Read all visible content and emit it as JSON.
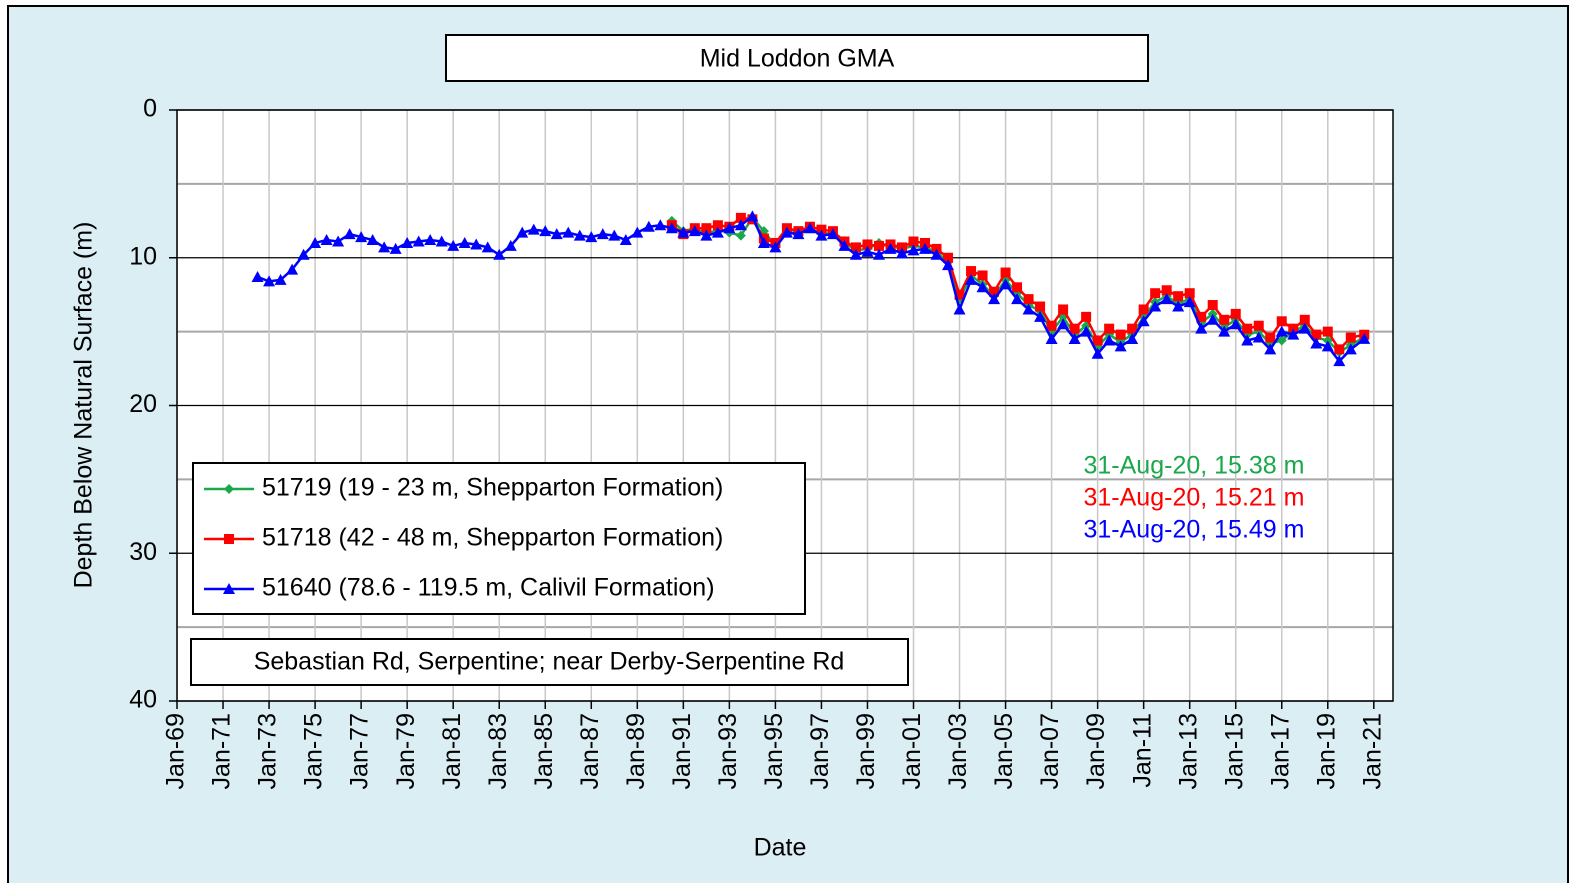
{
  "chart_data": {
    "type": "line",
    "title": "Mid Loddon GMA",
    "xlabel": "Date",
    "ylabel": "Depth Below Natural Surface (m)",
    "location": "Sebastian Rd, Serpentine; near Derby-Serpentine Rd",
    "y_inverted": true,
    "grid": true,
    "legend_loc": "lower left",
    "xlim": [
      "1969-01",
      "2021-11"
    ],
    "xticks": [
      {
        "value": "1969-01",
        "label": "Jan-69"
      },
      {
        "value": "1971-01",
        "label": "Jan-71"
      },
      {
        "value": "1973-01",
        "label": "Jan-73"
      },
      {
        "value": "1975-01",
        "label": "Jan-75"
      },
      {
        "value": "1977-01",
        "label": "Jan-77"
      },
      {
        "value": "1979-01",
        "label": "Jan-79"
      },
      {
        "value": "1981-01",
        "label": "Jan-81"
      },
      {
        "value": "1983-01",
        "label": "Jan-83"
      },
      {
        "value": "1985-01",
        "label": "Jan-85"
      },
      {
        "value": "1987-01",
        "label": "Jan-87"
      },
      {
        "value": "1989-01",
        "label": "Jan-89"
      },
      {
        "value": "1991-01",
        "label": "Jan-91"
      },
      {
        "value": "1993-01",
        "label": "Jan-93"
      },
      {
        "value": "1995-01",
        "label": "Jan-95"
      },
      {
        "value": "1997-01",
        "label": "Jan-97"
      },
      {
        "value": "1999-01",
        "label": "Jan-99"
      },
      {
        "value": "2001-01",
        "label": "Jan-01"
      },
      {
        "value": "2003-01",
        "label": "Jan-03"
      },
      {
        "value": "2005-01",
        "label": "Jan-05"
      },
      {
        "value": "2007-01",
        "label": "Jan-07"
      },
      {
        "value": "2009-01",
        "label": "Jan-09"
      },
      {
        "value": "2011-01",
        "label": "Jan-11"
      },
      {
        "value": "2013-01",
        "label": "Jan-13"
      },
      {
        "value": "2015-01",
        "label": "Jan-15"
      },
      {
        "value": "2017-01",
        "label": "Jan-17"
      },
      {
        "value": "2019-01",
        "label": "Jan-19"
      },
      {
        "value": "2021-01",
        "label": "Jan-21"
      }
    ],
    "ylim": [
      0,
      40
    ],
    "yticks": [
      0,
      10,
      20,
      30,
      40
    ],
    "y_minor_ticks": [
      5,
      15,
      25,
      35
    ],
    "annotations": [
      {
        "text": "31-Aug-20,  15.38 m",
        "color": "#1aa84a"
      },
      {
        "text": "31-Aug-20,  15.21 m",
        "color": "#ff0000"
      },
      {
        "text": "31-Aug-20,  15.49 m",
        "color": "#0000ff"
      }
    ],
    "series": [
      {
        "name": "51719 (19 - 23 m, Shepparton Formation)",
        "color": "#1aa84a",
        "marker": "diamond",
        "x": [
          "1990-07",
          "1991-01",
          "1991-07",
          "1992-01",
          "1992-07",
          "1993-01",
          "1993-07",
          "1994-01",
          "1994-07",
          "1995-01",
          "1995-07",
          "1996-01",
          "1996-07",
          "1997-01",
          "1997-07",
          "1998-01",
          "1998-07",
          "1999-01",
          "1999-07",
          "2000-01",
          "2000-07",
          "2001-01",
          "2001-07",
          "2002-01",
          "2002-07",
          "2003-01",
          "2003-07",
          "2004-01",
          "2004-07",
          "2005-01",
          "2005-07",
          "2006-01",
          "2006-07",
          "2007-01",
          "2007-07",
          "2008-01",
          "2008-07",
          "2009-01",
          "2009-07",
          "2010-01",
          "2010-07",
          "2011-01",
          "2011-07",
          "2012-01",
          "2012-07",
          "2013-01",
          "2013-07",
          "2014-01",
          "2014-07",
          "2015-01",
          "2015-07",
          "2016-01",
          "2016-07",
          "2017-01",
          "2017-07",
          "2018-01",
          "2018-07",
          "2019-01",
          "2019-07",
          "2020-01",
          "2020-08"
        ],
        "values": [
          7.5,
          8.2,
          8.0,
          8.4,
          8.1,
          8.3,
          8.5,
          7.3,
          8.2,
          9.2,
          8.2,
          8.4,
          8.0,
          8.4,
          8.3,
          9.0,
          9.5,
          9.4,
          9.0,
          9.2,
          9.4,
          9.2,
          9.3,
          9.6,
          10.3,
          12.8,
          11.2,
          11.8,
          12.6,
          11.5,
          12.4,
          13.2,
          13.6,
          15.0,
          14.0,
          15.2,
          14.6,
          16.0,
          15.2,
          15.7,
          15.2,
          14.0,
          13.0,
          12.6,
          13.1,
          12.8,
          14.4,
          13.8,
          14.7,
          14.2,
          15.2,
          15.0,
          15.8,
          15.6,
          15.0,
          14.6,
          15.4,
          15.6,
          16.4,
          15.9,
          15.38
        ]
      },
      {
        "name": "51718 (42 - 48 m, Shepparton Formation)",
        "color": "#ff0000",
        "marker": "square",
        "x": [
          "1990-07",
          "1991-01",
          "1991-07",
          "1992-01",
          "1992-07",
          "1993-01",
          "1993-07",
          "1994-01",
          "1994-07",
          "1995-01",
          "1995-07",
          "1996-01",
          "1996-07",
          "1997-01",
          "1997-07",
          "1998-01",
          "1998-07",
          "1999-01",
          "1999-07",
          "2000-01",
          "2000-07",
          "2001-01",
          "2001-07",
          "2002-01",
          "2002-07",
          "2003-01",
          "2003-07",
          "2004-01",
          "2004-07",
          "2005-01",
          "2005-07",
          "2006-01",
          "2006-07",
          "2007-01",
          "2007-07",
          "2008-01",
          "2008-07",
          "2009-01",
          "2009-07",
          "2010-01",
          "2010-07",
          "2011-01",
          "2011-07",
          "2012-01",
          "2012-07",
          "2013-01",
          "2013-07",
          "2014-01",
          "2014-07",
          "2015-01",
          "2015-07",
          "2016-01",
          "2016-07",
          "2017-01",
          "2017-07",
          "2018-01",
          "2018-07",
          "2019-01",
          "2019-07",
          "2020-01",
          "2020-08"
        ],
        "values": [
          7.8,
          8.4,
          8.0,
          8.0,
          7.8,
          7.9,
          7.3,
          7.4,
          8.7,
          9.0,
          8.0,
          8.2,
          7.9,
          8.1,
          8.2,
          8.9,
          9.3,
          9.1,
          9.2,
          9.1,
          9.3,
          8.9,
          9.0,
          9.4,
          10.0,
          12.5,
          10.9,
          11.2,
          12.3,
          11.0,
          12.0,
          12.8,
          13.3,
          14.6,
          13.5,
          14.8,
          14.0,
          15.6,
          14.8,
          15.2,
          14.8,
          13.5,
          12.4,
          12.2,
          12.6,
          12.4,
          14.0,
          13.2,
          14.2,
          13.8,
          14.8,
          14.6,
          15.4,
          14.3,
          14.8,
          14.2,
          15.2,
          15.0,
          16.2,
          15.4,
          15.21
        ]
      },
      {
        "name": "51640 (78.6 - 119.5 m, Calivil Formation)",
        "color": "#0000ff",
        "marker": "triangle",
        "x": [
          "1972-07",
          "1973-01",
          "1973-07",
          "1974-01",
          "1974-07",
          "1975-01",
          "1975-07",
          "1976-01",
          "1976-07",
          "1977-01",
          "1977-07",
          "1978-01",
          "1978-07",
          "1979-01",
          "1979-07",
          "1980-01",
          "1980-07",
          "1981-01",
          "1981-07",
          "1982-01",
          "1982-07",
          "1983-01",
          "1983-07",
          "1984-01",
          "1984-07",
          "1985-01",
          "1985-07",
          "1986-01",
          "1986-07",
          "1987-01",
          "1987-07",
          "1988-01",
          "1988-07",
          "1989-01",
          "1989-07",
          "1990-01",
          "1990-07",
          "1991-01",
          "1991-07",
          "1992-01",
          "1992-07",
          "1993-01",
          "1993-07",
          "1994-01",
          "1994-07",
          "1995-01",
          "1995-07",
          "1996-01",
          "1996-07",
          "1997-01",
          "1997-07",
          "1998-01",
          "1998-07",
          "1999-01",
          "1999-07",
          "2000-01",
          "2000-07",
          "2001-01",
          "2001-07",
          "2002-01",
          "2002-07",
          "2003-01",
          "2003-07",
          "2004-01",
          "2004-07",
          "2005-01",
          "2005-07",
          "2006-01",
          "2006-07",
          "2007-01",
          "2007-07",
          "2008-01",
          "2008-07",
          "2009-01",
          "2009-07",
          "2010-01",
          "2010-07",
          "2011-01",
          "2011-07",
          "2012-01",
          "2012-07",
          "2013-01",
          "2013-07",
          "2014-01",
          "2014-07",
          "2015-01",
          "2015-07",
          "2016-01",
          "2016-07",
          "2017-01",
          "2017-07",
          "2018-01",
          "2018-07",
          "2019-01",
          "2019-07",
          "2020-01",
          "2020-08"
        ],
        "values": [
          11.3,
          11.6,
          11.5,
          10.8,
          9.8,
          9.0,
          8.8,
          8.9,
          8.4,
          8.6,
          8.8,
          9.3,
          9.4,
          9.0,
          8.9,
          8.8,
          8.9,
          9.2,
          9.0,
          9.1,
          9.3,
          9.8,
          9.2,
          8.3,
          8.1,
          8.2,
          8.4,
          8.3,
          8.5,
          8.6,
          8.4,
          8.5,
          8.8,
          8.3,
          7.9,
          7.8,
          8.0,
          8.3,
          8.2,
          8.5,
          8.3,
          8.0,
          7.8,
          7.2,
          9.0,
          9.3,
          8.3,
          8.4,
          8.0,
          8.5,
          8.4,
          9.2,
          9.8,
          9.6,
          9.8,
          9.4,
          9.7,
          9.5,
          9.4,
          9.8,
          10.5,
          13.5,
          11.5,
          12.0,
          12.8,
          11.8,
          12.8,
          13.5,
          14.0,
          15.5,
          14.5,
          15.5,
          15.0,
          16.5,
          15.6,
          16.0,
          15.5,
          14.3,
          13.3,
          12.8,
          13.3,
          13.0,
          14.8,
          14.2,
          15.0,
          14.5,
          15.6,
          15.4,
          16.2,
          15.0,
          15.2,
          14.8,
          15.8,
          16.0,
          17.0,
          16.2,
          15.49
        ]
      }
    ]
  }
}
